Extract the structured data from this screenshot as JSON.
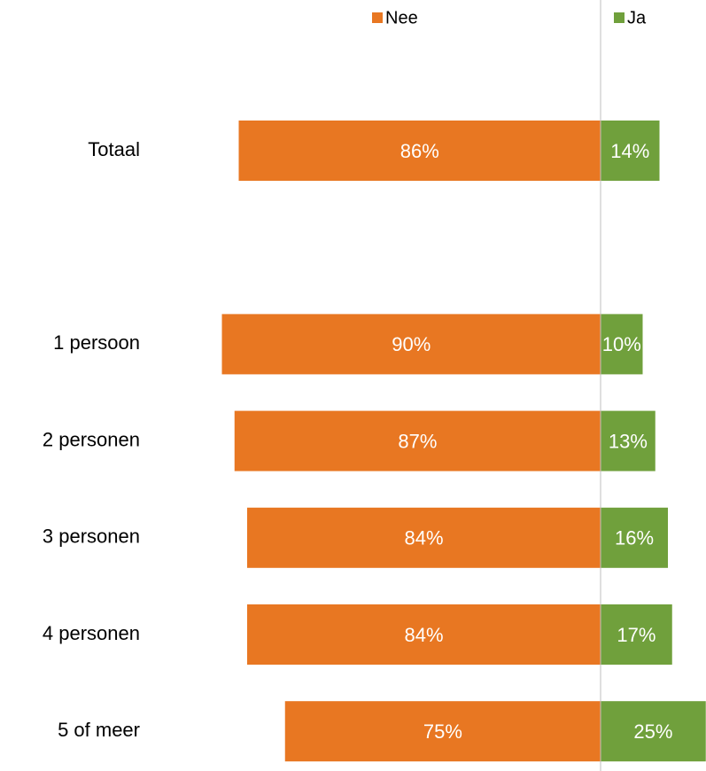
{
  "chart_data": {
    "type": "diverging-bar",
    "categories": [
      "Totaal",
      null,
      "1 persoon",
      "2 personen",
      "3 personen",
      "4 personen",
      "5 of meer"
    ],
    "series": [
      {
        "name": "Nee",
        "color": "#e87722",
        "direction": "left",
        "values": [
          86,
          null,
          90,
          87,
          84,
          84,
          75
        ],
        "value_labels": [
          "86%",
          null,
          "90%",
          "87%",
          "84%",
          "84%",
          "75%"
        ]
      },
      {
        "name": "Ja",
        "color": "#70a03c",
        "direction": "right",
        "values": [
          14,
          null,
          10,
          13,
          16,
          17,
          25
        ],
        "value_labels": [
          "14%",
          null,
          "10%",
          "13%",
          "16%",
          "17%",
          "25%"
        ]
      }
    ],
    "legend": "top"
  }
}
